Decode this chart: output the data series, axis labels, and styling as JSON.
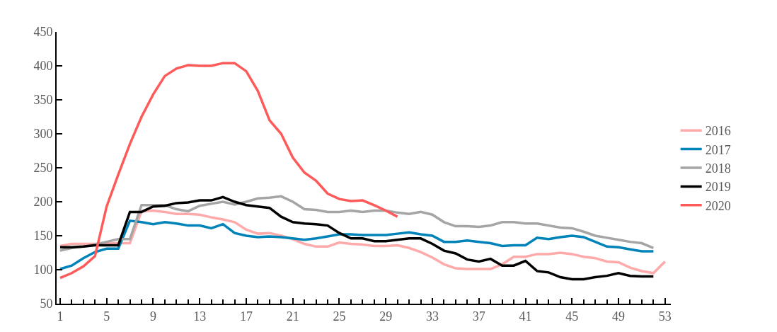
{
  "chart_data": {
    "type": "line",
    "x": [
      1,
      2,
      3,
      4,
      5,
      6,
      7,
      8,
      9,
      10,
      11,
      12,
      13,
      14,
      15,
      16,
      17,
      18,
      19,
      20,
      21,
      22,
      23,
      24,
      25,
      26,
      27,
      28,
      29,
      30,
      31,
      32,
      33,
      34,
      35,
      36,
      37,
      38,
      39,
      40,
      41,
      42,
      43,
      44,
      45,
      46,
      47,
      48,
      49,
      50,
      51,
      52,
      53
    ],
    "series": [
      {
        "name": "2016",
        "color": "#ffaaaa",
        "values": [
          135,
          138,
          138,
          138,
          139,
          139,
          139,
          186,
          187,
          185,
          182,
          182,
          181,
          177,
          174,
          170,
          159,
          153,
          154,
          150,
          145,
          138,
          134,
          134,
          140,
          138,
          137,
          135,
          135,
          136,
          132,
          126,
          118,
          108,
          102,
          101,
          101,
          101,
          108,
          119,
          119,
          123,
          123,
          125,
          123,
          119,
          117,
          112,
          111,
          103,
          98,
          95,
          112
        ]
      },
      {
        "name": "2017",
        "color": "#0083b8",
        "values": [
          101,
          106,
          117,
          126,
          131,
          131,
          172,
          170,
          167,
          170,
          168,
          165,
          165,
          161,
          167,
          154,
          150,
          148,
          149,
          148,
          146,
          144,
          146,
          149,
          152,
          152,
          151,
          151,
          151,
          153,
          155,
          152,
          150,
          141,
          141,
          143,
          141,
          139,
          135,
          136,
          136,
          147,
          145,
          148,
          150,
          148,
          141,
          134,
          133,
          130,
          127,
          127,
          null
        ]
      },
      {
        "name": "2018",
        "color": "#a5a5a5",
        "values": [
          128,
          132,
          134,
          137,
          141,
          145,
          145,
          195,
          195,
          195,
          189,
          186,
          194,
          197,
          200,
          196,
          200,
          205,
          206,
          208,
          200,
          189,
          188,
          185,
          185,
          187,
          185,
          187,
          187,
          184,
          182,
          185,
          181,
          170,
          164,
          164,
          163,
          165,
          170,
          170,
          168,
          168,
          165,
          162,
          161,
          156,
          150,
          147,
          144,
          141,
          139,
          132,
          null
        ]
      },
      {
        "name": "2019",
        "color": "#000000",
        "values": [
          133,
          133,
          134,
          136,
          136,
          136,
          185,
          185,
          193,
          194,
          198,
          199,
          202,
          202,
          207,
          200,
          195,
          193,
          191,
          178,
          170,
          168,
          167,
          165,
          154,
          146,
          146,
          142,
          142,
          144,
          146,
          146,
          138,
          128,
          124,
          115,
          112,
          116,
          106,
          106,
          113,
          98,
          96,
          89,
          86,
          86,
          89,
          91,
          95,
          91,
          90,
          90,
          null
        ]
      },
      {
        "name": "2020",
        "color": "#ff5a5a",
        "values": [
          88,
          95,
          105,
          120,
          193,
          240,
          285,
          325,
          358,
          385,
          396,
          401,
          400,
          400,
          404,
          404,
          392,
          363,
          320,
          300,
          265,
          243,
          231,
          212,
          204,
          201,
          202,
          195,
          187,
          178,
          null,
          null,
          null,
          null,
          null,
          null,
          null,
          null,
          null,
          null,
          null,
          null,
          null,
          null,
          null,
          null,
          null,
          null,
          null,
          null,
          null,
          null,
          null
        ]
      }
    ],
    "xlim": [
      0.7,
      53.5
    ],
    "xticks": [
      1,
      5,
      9,
      13,
      17,
      21,
      25,
      29,
      33,
      37,
      41,
      45,
      49,
      53
    ],
    "ylim": [
      50,
      450
    ],
    "yticks": [
      50,
      100,
      150,
      200,
      250,
      300,
      350,
      400,
      450
    ],
    "legend": "right",
    "marker": "none",
    "line_style": "solid"
  }
}
